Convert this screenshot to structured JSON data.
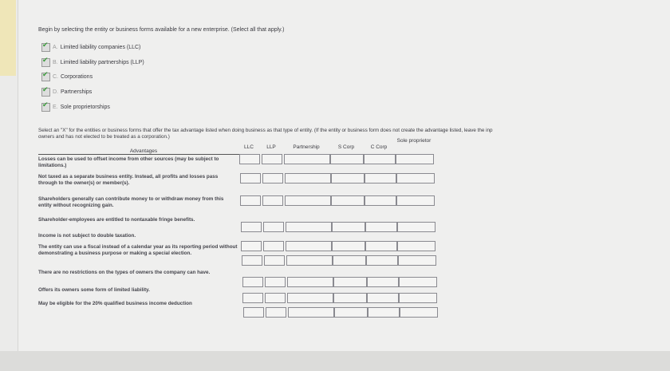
{
  "question1": "Begin by selecting the entity or business forms available for a new enterprise. (Select all that apply.)",
  "options": [
    {
      "letter": "A.",
      "label": "Limited liability companies (LLC)",
      "checked": true
    },
    {
      "letter": "B.",
      "label": "Limited liability partnerships (LLP)",
      "checked": true
    },
    {
      "letter": "C.",
      "label": "Corporations",
      "checked": true
    },
    {
      "letter": "D.",
      "label": "Partnerships",
      "checked": true
    },
    {
      "letter": "E.",
      "label": "Sole proprietorships",
      "checked": true
    }
  ],
  "question2_line1": "Select an \"X\" for the entities or business forms that offer the tax advantage listed when doing business as that type of entity. (If the entity or business form does not create the advantage listed, leave the inp",
  "question2_line2": "owners and has not elected to be treated as a corporation.)",
  "table": {
    "advantages_header": "Advantages",
    "columns": [
      "LLC",
      "LLP",
      "Partnership",
      "S Corp",
      "C Corp",
      "Sole proprietor"
    ],
    "rows": [
      "Losses can be used to offset income from other sources (may be subject to limitations.)",
      "Not taxed as a separate business entity. Instead, all profits and losses pass through to the owner(s) or member(s).",
      "Shareholders generally can contribute money to or withdraw money from this entity without recognizing gain.",
      "Shareholder-employees are entitled to nontaxable fringe benefits.",
      "Income is not subject to double taxation.",
      "The entity can use a fiscal instead of a calendar year as its reporting period without demonstrating a business purpose or making a special election.",
      "There are no restrictions on the types of owners the company can have.",
      "Offers its owners some form of limited liability.",
      "May be eligible for the 20% qualified business income deduction"
    ]
  }
}
